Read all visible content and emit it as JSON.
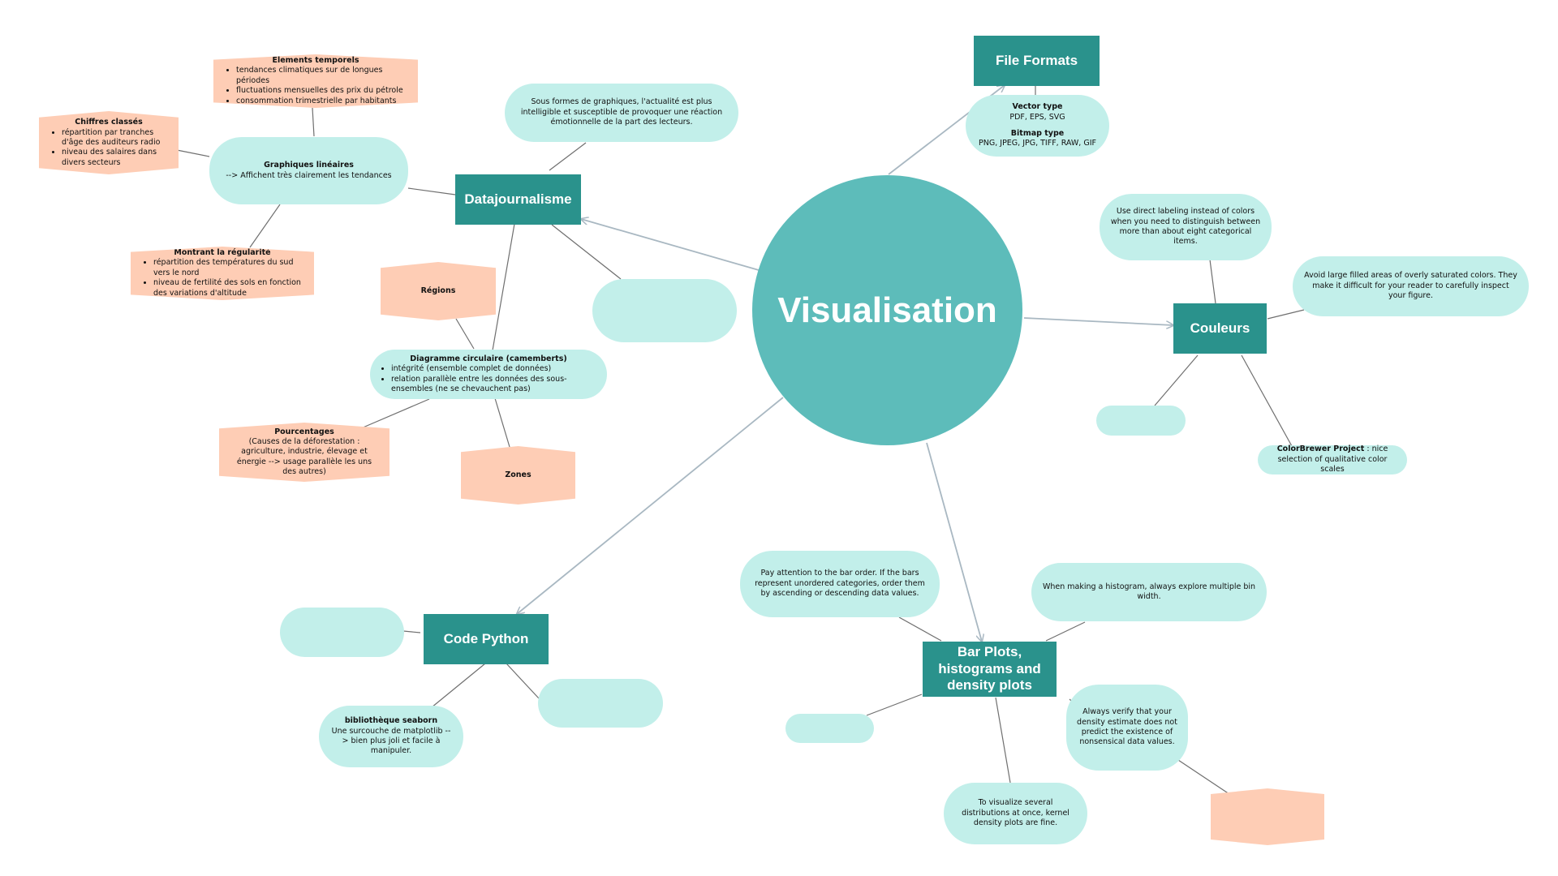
{
  "center": {
    "label": "Visualisation"
  },
  "hubs": {
    "file_formats": "File Formats",
    "datajournalisme": "Datajournalisme",
    "couleurs": "Couleurs",
    "code_python": "Code Python",
    "bar_plots": "Bar Plots, histograms and density plots"
  },
  "file_formats": {
    "vector_title": "Vector type",
    "vector_text": "PDF, EPS, SVG",
    "bitmap_title": "Bitmap type",
    "bitmap_text": "PNG, JPEG, JPG, TIFF, RAW, GIF"
  },
  "datajournalisme": {
    "intro": "Sous formes de graphiques, l'actualité est plus intelligible et susceptible de provoquer une réaction émotionnelle de la part des lecteurs.",
    "graphiques": {
      "title": "Graphiques linéaires",
      "text": "--> Affichent très clairement les tendances"
    },
    "elements": {
      "title": "Elements temporels",
      "items": [
        "tendances climatiques sur de longues périodes",
        "fluctuations mensuelles des prix du pétrole",
        "consommation trimestrielle par habitants"
      ]
    },
    "chiffres": {
      "title": "Chiffres classés",
      "items": [
        "répartition par tranches d'âge des auditeurs radio",
        "niveau des salaires dans divers secteurs"
      ]
    },
    "regularite": {
      "title": "Montrant la régularité",
      "items": [
        "répartition des températures du sud vers le nord",
        "niveau de fertilité des sols en fonction des variations d'altitude"
      ]
    },
    "regions": "Régions",
    "diagramme": {
      "title": "Diagramme circulaire (camemberts)",
      "items": [
        "intégrité (ensemble complet de données)",
        "relation parallèle entre les données des sous-ensembles (ne se chevauchent pas)"
      ]
    },
    "pourcentages": {
      "title": "Pourcentages",
      "text": "(Causes de la déforestation : agriculture, industrie, élevage et énergie --> usage parallèle les uns des autres)"
    },
    "zones": "Zones"
  },
  "couleurs": {
    "labeling": "Use direct labeling instead of colors when you need to distinguish between more than about eight categorical items.",
    "saturated": "Avoid large filled areas of overly saturated colors. They make it difficult for your reader to carefully inspect your figure.",
    "colorbrewer_title": "ColorBrewer Project",
    "colorbrewer_text": ": nice selection of qualitative color scales"
  },
  "code_python": {
    "seaborn_title": "bibliothèque seaborn",
    "seaborn_text": "Une surcouche de matplotlib --> bien plus joli et facile à manipuler."
  },
  "bar_plots": {
    "order": "Pay attention to the bar order. If the bars represent unordered categories, order them by ascending or descending data values.",
    "bins": "When making a histogram, always explore multiple bin width.",
    "density": "Always verify that your density estimate does not predict the existence of nonsensical data values.",
    "kernel": "To visualize several distributions at once, kernel density plots are fine."
  },
  "colors": {
    "hub": "#2a928c",
    "center": "#5dbcba",
    "pill": "#c2efea",
    "hex": "#fecdb5",
    "arrow": "#a9b8c2",
    "line": "#6f6f6f"
  }
}
